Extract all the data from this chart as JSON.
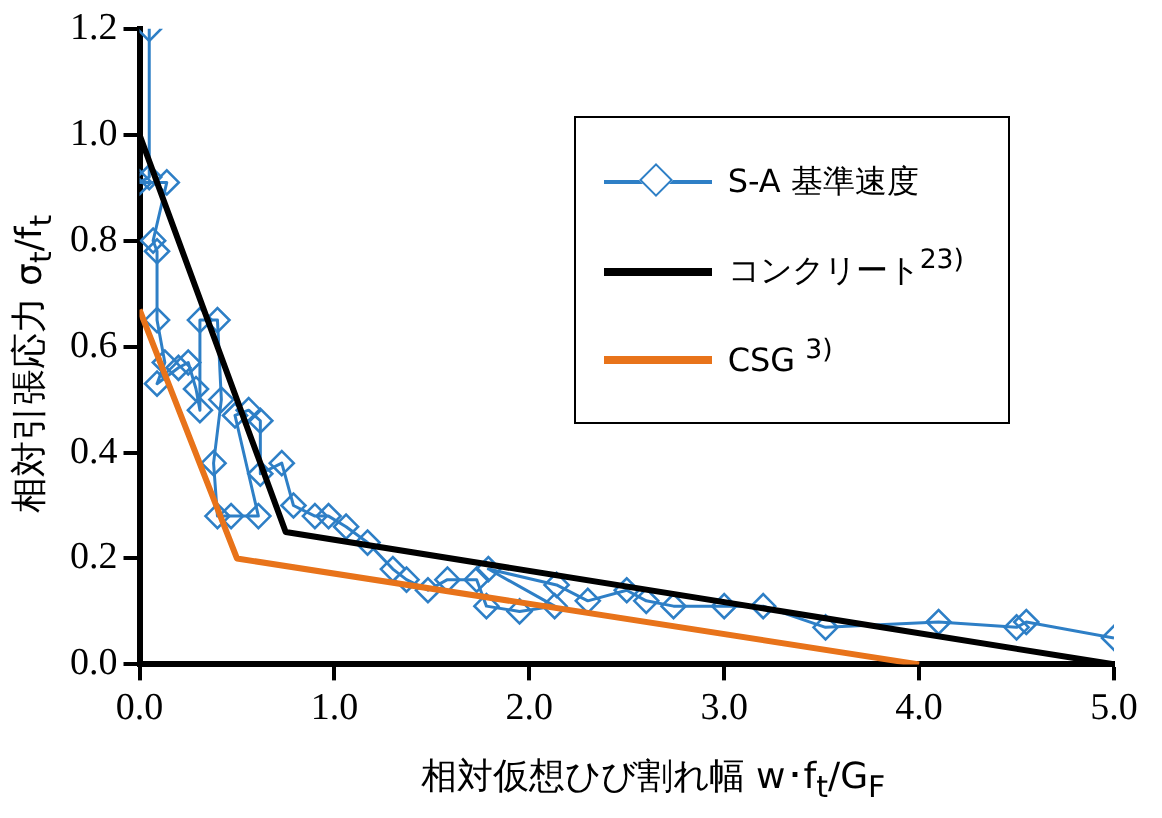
{
  "chart_data": {
    "type": "line",
    "xlabel": "相対仮想ひび割れ幅 w･f$_{t}$/G$_{F}$",
    "ylabel": "相対引張応力 σ$_{t}$/f$_{t}$",
    "xlim": [
      0,
      5
    ],
    "ylim": [
      0,
      1.2
    ],
    "xticks": [
      {
        "value": 0,
        "label": "0.0"
      },
      {
        "value": 1,
        "label": "1.0"
      },
      {
        "value": 2,
        "label": "2.0"
      },
      {
        "value": 3,
        "label": "3.0"
      },
      {
        "value": 4,
        "label": "4.0"
      },
      {
        "value": 5,
        "label": "5.0"
      }
    ],
    "yticks": [
      {
        "value": 0,
        "label": "0.0"
      },
      {
        "value": 0.2,
        "label": "0.2"
      },
      {
        "value": 0.4,
        "label": "0.4"
      },
      {
        "value": 0.6,
        "label": "0.6"
      },
      {
        "value": 0.8,
        "label": "0.8"
      },
      {
        "value": 1,
        "label": "1.0"
      },
      {
        "value": 1.2,
        "label": "1.2"
      }
    ],
    "grid": false,
    "legend": "top right",
    "series": [
      {
        "name": "S-A 基準速度",
        "color": "#2e7fc6",
        "marker": "diamond",
        "x": [
          0.05,
          0.05,
          0,
          0.14,
          0.07,
          0.09,
          0.09,
          0.13,
          0.09,
          0.2,
          0.25,
          0.29,
          0.31,
          0.31,
          0.4,
          0.42,
          0.38,
          0.4,
          0.47,
          0.61,
          0.49,
          0.56,
          0.62,
          0.62,
          0.73,
          0.79,
          0.9,
          0.97,
          1.06,
          1.17,
          1.3,
          1.37,
          1.48,
          1.58,
          1.73,
          1.78,
          1.95,
          2.13,
          1.79,
          2.14,
          2.3,
          2.5,
          2.6,
          2.74,
          3.0,
          3.2,
          3.52,
          4.1,
          4.5,
          4.55,
          5.0
        ],
        "values": [
          1.2,
          0.92,
          0.91,
          0.91,
          0.8,
          0.78,
          0.65,
          0.57,
          0.53,
          0.56,
          0.57,
          0.52,
          0.48,
          0.65,
          0.65,
          0.5,
          0.38,
          0.28,
          0.28,
          0.28,
          0.47,
          0.48,
          0.46,
          0.36,
          0.38,
          0.3,
          0.28,
          0.28,
          0.26,
          0.23,
          0.18,
          0.16,
          0.14,
          0.16,
          0.16,
          0.11,
          0.1,
          0.11,
          0.18,
          0.15,
          0.12,
          0.14,
          0.12,
          0.11,
          0.11,
          0.11,
          0.07,
          0.08,
          0.07,
          0.08,
          0.05
        ]
      },
      {
        "name": "コンクリート$^{23)}$",
        "color": "#000000",
        "marker": "none",
        "x": [
          0,
          0.75,
          5.0
        ],
        "values": [
          1.0,
          0.25,
          0
        ]
      },
      {
        "name": "CSG $^{3)}$",
        "color": "#e8731a",
        "marker": "none",
        "x": [
          0,
          0.5,
          4.0
        ],
        "values": [
          0.67,
          0.2,
          0
        ]
      }
    ]
  }
}
